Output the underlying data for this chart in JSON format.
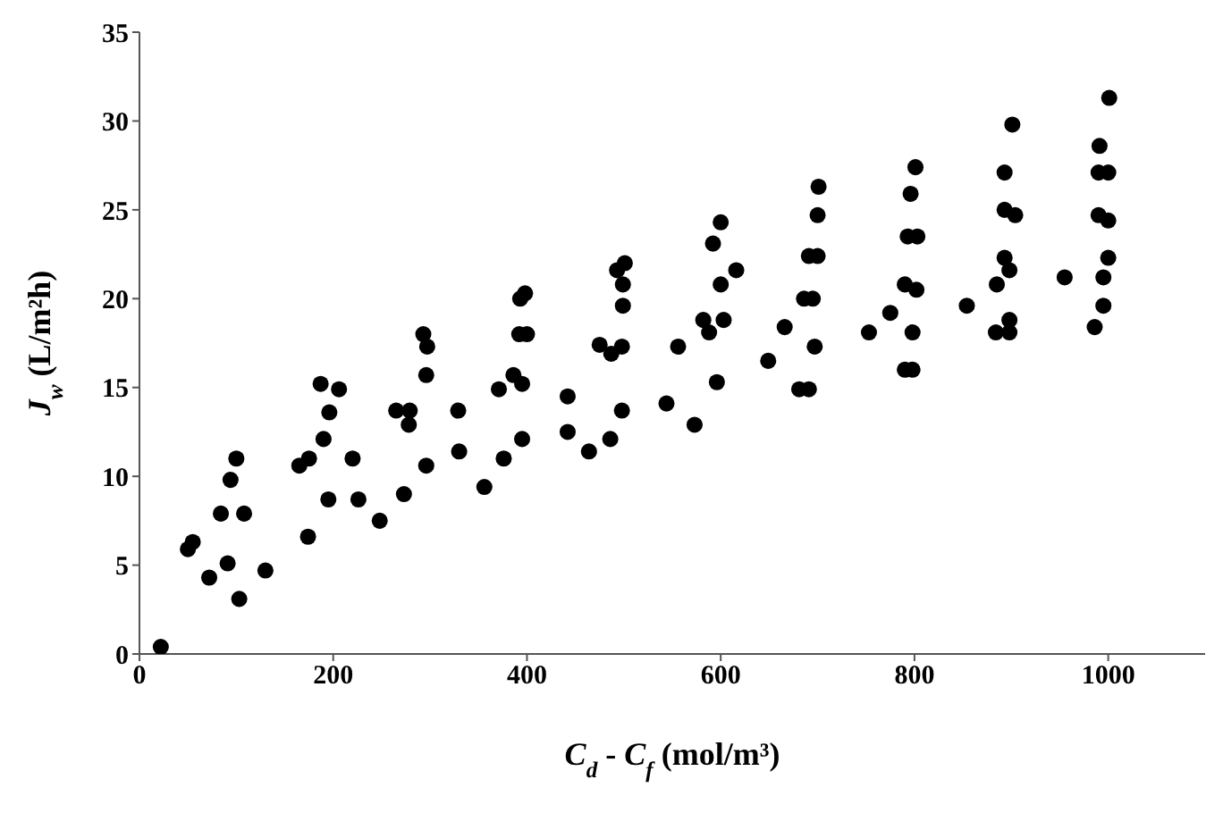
{
  "chart_data": {
    "type": "scatter",
    "xlabel": "C$_{d}$ - C$_{f}$  (mol/m³)",
    "ylabel": "J$_{w}$ (L/m²h)",
    "xlim": [
      0,
      1100
    ],
    "xticks": [
      0,
      200,
      400,
      600,
      800,
      1000
    ],
    "ylim": [
      0,
      35
    ],
    "yticks": [
      0,
      5,
      10,
      15,
      20,
      25,
      30,
      35
    ],
    "grid": false,
    "marker": "circle",
    "series": [
      {
        "color": "#000000",
        "x": [
          22,
          50,
          55,
          72,
          84,
          91,
          94,
          100,
          103,
          108,
          130,
          165,
          175,
          174,
          187,
          190,
          195,
          196,
          206,
          220,
          226,
          248,
          265,
          279,
          273,
          278,
          293,
          297,
          296,
          296,
          329,
          330,
          356,
          371,
          376,
          386,
          392,
          400,
          393,
          398,
          395,
          395,
          442,
          442,
          464,
          486,
          498,
          475,
          487,
          498,
          493,
          501,
          499,
          499,
          544,
          556,
          573,
          582,
          588,
          592,
          596,
          600,
          600,
          603,
          616,
          649,
          666,
          681,
          691,
          686,
          695,
          691,
          700,
          697,
          700,
          701,
          753,
          775,
          790,
          798,
          790,
          802,
          796,
          798,
          793,
          803,
          801,
          854,
          885,
          884,
          898,
          898,
          893,
          898,
          893,
          904,
          893,
          901,
          955,
          986,
          991,
          990,
          1000,
          990,
          1000,
          995,
          995,
          1000,
          1001
        ],
        "values": [
          0.4,
          5.9,
          6.3,
          4.3,
          7.9,
          5.1,
          9.8,
          11.0,
          3.1,
          7.9,
          4.7,
          10.6,
          11.0,
          6.6,
          15.2,
          12.1,
          8.7,
          13.6,
          14.9,
          11.0,
          8.7,
          7.5,
          13.7,
          13.7,
          9.0,
          12.9,
          18.0,
          17.3,
          15.7,
          10.6,
          13.7,
          11.4,
          9.4,
          14.9,
          11.0,
          15.7,
          18.0,
          18.0,
          20.0,
          20.3,
          15.2,
          12.1,
          14.5,
          12.5,
          11.4,
          12.1,
          13.7,
          17.4,
          16.9,
          17.3,
          21.6,
          22.0,
          20.8,
          19.6,
          14.1,
          17.3,
          12.9,
          18.8,
          18.1,
          23.1,
          15.3,
          24.3,
          20.8,
          18.8,
          21.6,
          16.5,
          18.4,
          14.9,
          14.9,
          20.0,
          20.0,
          22.4,
          22.4,
          17.3,
          24.7,
          26.3,
          18.1,
          19.2,
          16.0,
          16.0,
          20.8,
          20.5,
          25.9,
          18.1,
          23.5,
          23.5,
          27.4,
          19.6,
          20.8,
          18.1,
          18.1,
          18.8,
          22.3,
          21.6,
          25.0,
          24.7,
          27.1,
          29.8,
          21.2,
          18.4,
          28.6,
          27.1,
          27.1,
          24.7,
          24.4,
          21.2,
          19.6,
          22.3,
          31.3
        ]
      }
    ]
  }
}
